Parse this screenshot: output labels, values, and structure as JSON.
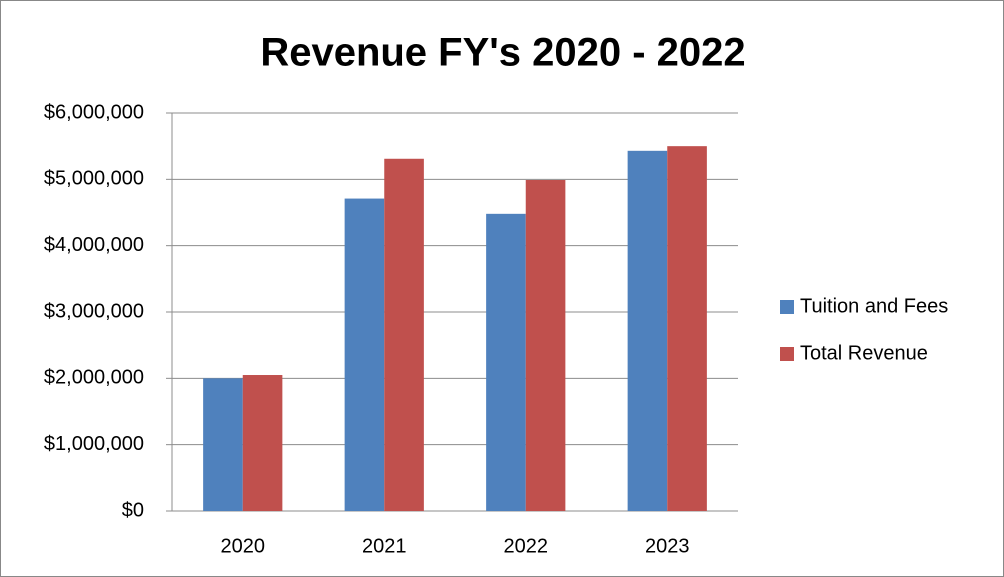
{
  "chart_data": {
    "type": "bar",
    "title": "Revenue FY's 2020 - 2022",
    "categories": [
      "2020",
      "2021",
      "2022",
      "2023"
    ],
    "series": [
      {
        "name": "Tuition and Fees",
        "color": "#4f81bd",
        "values": [
          2000000,
          4710000,
          4480000,
          5430000
        ]
      },
      {
        "name": "Total Revenue",
        "color": "#c0504d",
        "values": [
          2050000,
          5310000,
          4990000,
          5500000
        ]
      }
    ],
    "ylim": [
      0,
      6000000
    ],
    "yticks": [
      {
        "value": 0,
        "label": "$0"
      },
      {
        "value": 1000000,
        "label": "$1,000,000"
      },
      {
        "value": 2000000,
        "label": "$2,000,000"
      },
      {
        "value": 3000000,
        "label": "$3,000,000"
      },
      {
        "value": 4000000,
        "label": "$4,000,000"
      },
      {
        "value": 5000000,
        "label": "$5,000,000"
      },
      {
        "value": 6000000,
        "label": "$6,000,000"
      }
    ],
    "grid": true,
    "legend": "right"
  }
}
